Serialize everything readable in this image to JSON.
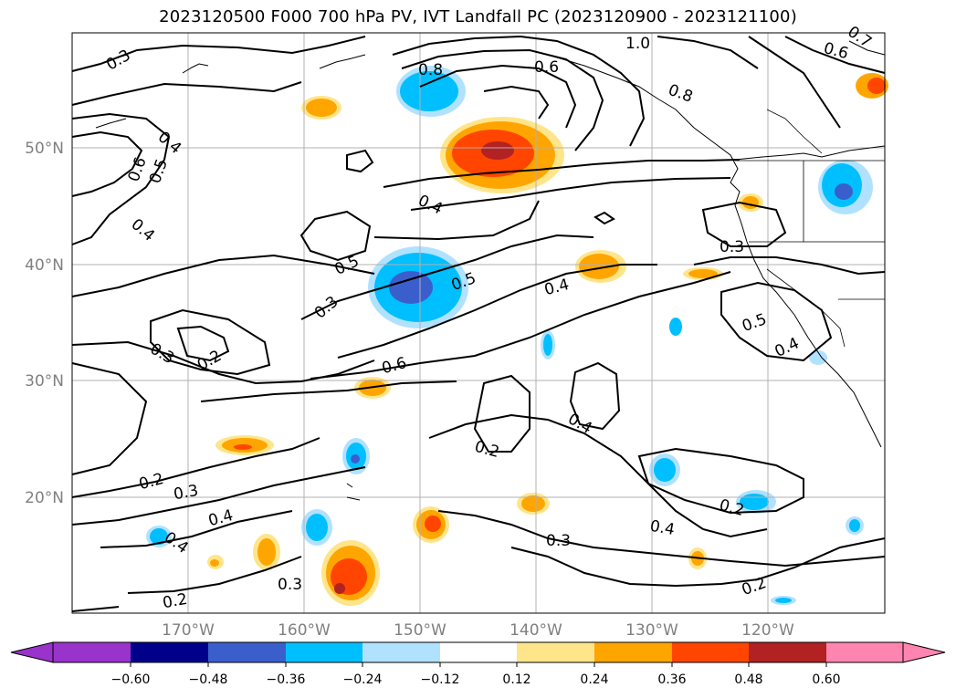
{
  "title": "2023120500 F000 700 hPa PV, IVT Landfall PC (2023120900 - 2023121100)",
  "map": {
    "lat_ticks": [
      "50°N",
      "40°N",
      "30°N",
      "20°N"
    ],
    "lon_ticks": [
      "170°W",
      "160°W",
      "150°W",
      "140°W",
      "130°W",
      "120°W"
    ],
    "grid": true
  },
  "contour_labels": [
    "0.3",
    "0.8",
    "0.6",
    "1.0",
    "0.8",
    "0.6",
    "0.7",
    "0.4",
    "0.5",
    "0.6",
    "0.4",
    "0.4",
    "0.5",
    "0.3",
    "0.5",
    "0.3",
    "0.4",
    "0.3",
    "0.2",
    "0.6",
    "0.4",
    "0.5",
    "0.4",
    "0.2",
    "0.2",
    "0.3",
    "0.4",
    "0.4",
    "0.3",
    "0.4",
    "0.2",
    "0.3",
    "0.2",
    "0.2"
  ],
  "colorbar": {
    "labels": [
      "−0.60",
      "−0.48",
      "−0.36",
      "−0.24",
      "−0.12",
      "0.12",
      "0.24",
      "0.36",
      "0.48",
      "0.60"
    ],
    "colors": [
      "#9933cc",
      "#00008b",
      "#3a5fcd",
      "#00bfff",
      "#b0e2ff",
      "#ffffff",
      "#ffe58a",
      "#ffa500",
      "#ff4500",
      "#b22222",
      "#ff85b0"
    ]
  }
}
